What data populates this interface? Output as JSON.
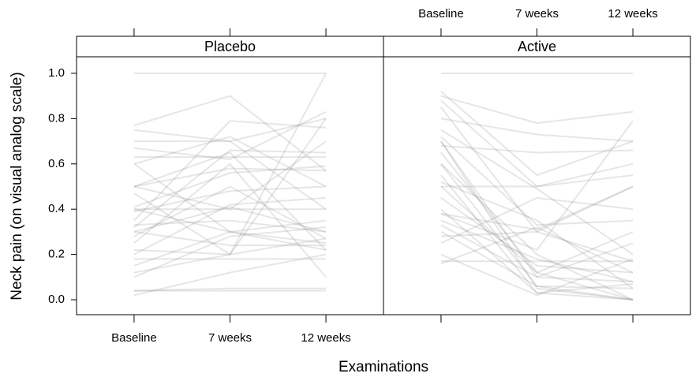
{
  "chart_data": [
    {
      "type": "line",
      "title": "Placebo",
      "ylabel": "Neck pain (on visual analog scale)",
      "xlabel": "Examinations",
      "categories": [
        "Baseline",
        "7 weeks",
        "12 weeks"
      ],
      "color": "rgba(140,140,140,0.22)",
      "ylim": [
        -0.066,
        1.073
      ],
      "yticks": [
        {
          "value": 0,
          "label": "0.0"
        },
        0.2,
        0.4,
        0.6,
        0.8,
        {
          "value": 1,
          "label": "1.0"
        }
      ],
      "series": [
        {
          "values": [
            1.0,
            1.0,
            1.0
          ]
        },
        {
          "values": [
            0.77,
            0.9,
            0.57
          ]
        },
        {
          "values": [
            0.75,
            0.7,
            0.8
          ]
        },
        {
          "values": [
            0.7,
            0.7,
            0.4
          ]
        },
        {
          "values": [
            0.67,
            0.62,
            0.83
          ]
        },
        {
          "values": [
            0.63,
            0.63,
            0.63
          ]
        },
        {
          "values": [
            0.6,
            0.3,
            0.25
          ]
        },
        {
          "values": [
            0.6,
            0.72,
            0.5
          ]
        },
        {
          "values": [
            0.5,
            0.4,
            0.7
          ]
        },
        {
          "values": [
            0.5,
            0.65,
            0.22
          ]
        },
        {
          "values": [
            0.47,
            0.2,
            0.8
          ]
        },
        {
          "values": [
            0.41,
            0.56,
            0.59
          ]
        },
        {
          "values": [
            0.4,
            0.3,
            0.22
          ]
        },
        {
          "values": [
            0.4,
            0.4,
            0.4
          ]
        },
        {
          "values": [
            0.39,
            0.48,
            0.5
          ]
        },
        {
          "values": [
            0.35,
            0.79,
            0.76
          ]
        },
        {
          "values": [
            0.33,
            0.35,
            0.3
          ]
        },
        {
          "values": [
            0.3,
            0.41,
            0.3
          ]
        },
        {
          "values": [
            0.3,
            0.24,
            0.24
          ]
        },
        {
          "values": [
            0.28,
            0.5,
            0.27
          ]
        },
        {
          "values": [
            0.25,
            0.6,
            0.1
          ]
        },
        {
          "values": [
            0.22,
            0.2,
            0.27
          ]
        },
        {
          "values": [
            0.2,
            0.42,
            0.45
          ]
        },
        {
          "values": [
            0.18,
            0.18,
            0.18
          ]
        },
        {
          "values": [
            0.15,
            0.3,
            0.35
          ]
        },
        {
          "values": [
            0.12,
            0.2,
            1.0
          ]
        },
        {
          "values": [
            0.1,
            0.28,
            0.32
          ]
        },
        {
          "values": [
            0.04,
            0.05,
            0.05
          ]
        },
        {
          "values": [
            0.02,
            0.12,
            0.2
          ]
        },
        {
          "values": [
            0.04,
            0.04,
            0.04
          ]
        },
        {
          "values": [
            0.32,
            0.66,
            0.65
          ]
        },
        {
          "values": [
            0.5,
            0.58,
            0.57
          ]
        }
      ]
    },
    {
      "type": "line",
      "title": "Active",
      "categories": [
        "Baseline",
        "7 weeks",
        "12 weeks"
      ],
      "color": "rgba(140,140,140,0.22)",
      "ylim": [
        -0.066,
        1.073
      ],
      "series": [
        {
          "values": [
            1.0,
            1.0,
            1.0
          ]
        },
        {
          "values": [
            0.92,
            0.55,
            0.7
          ]
        },
        {
          "values": [
            0.9,
            0.78,
            0.83
          ]
        },
        {
          "values": [
            0.88,
            0.5,
            0.6
          ]
        },
        {
          "values": [
            0.85,
            0.3,
            0.5
          ]
        },
        {
          "values": [
            0.8,
            0.73,
            0.7
          ]
        },
        {
          "values": [
            0.75,
            0.49,
            0.2
          ]
        },
        {
          "values": [
            0.72,
            0.33,
            0.35
          ]
        },
        {
          "values": [
            0.7,
            0.1,
            0.08
          ]
        },
        {
          "values": [
            0.7,
            0.05,
            0.0
          ]
        },
        {
          "values": [
            0.68,
            0.65,
            0.66
          ]
        },
        {
          "values": [
            0.65,
            0.12,
            0.3
          ]
        },
        {
          "values": [
            0.6,
            0.2,
            0.0
          ]
        },
        {
          "values": [
            0.55,
            0.03,
            0.07
          ]
        },
        {
          "values": [
            0.5,
            0.5,
            0.55
          ]
        },
        {
          "values": [
            0.52,
            0.35,
            0.05
          ]
        },
        {
          "values": [
            0.45,
            0.15,
            0.12
          ]
        },
        {
          "values": [
            0.4,
            0.03,
            0.0
          ]
        },
        {
          "values": [
            0.38,
            0.31,
            0.5
          ]
        },
        {
          "values": [
            0.35,
            0.18,
            0.08
          ]
        },
        {
          "values": [
            0.33,
            0.1,
            0.25
          ]
        },
        {
          "values": [
            0.3,
            0.06,
            0.0
          ]
        },
        {
          "values": [
            0.28,
            0.3,
            0.17
          ]
        },
        {
          "values": [
            0.25,
            0.45,
            0.4
          ]
        },
        {
          "values": [
            0.2,
            0.02,
            0.18
          ]
        },
        {
          "values": [
            0.17,
            0.17,
            0.17
          ]
        },
        {
          "values": [
            0.16,
            0.32,
            0.12
          ]
        },
        {
          "values": [
            0.5,
            0.12,
            0.0
          ]
        },
        {
          "values": [
            0.38,
            0.22,
            0.79
          ]
        },
        {
          "values": [
            0.6,
            0.06,
            0.05
          ]
        }
      ]
    }
  ]
}
